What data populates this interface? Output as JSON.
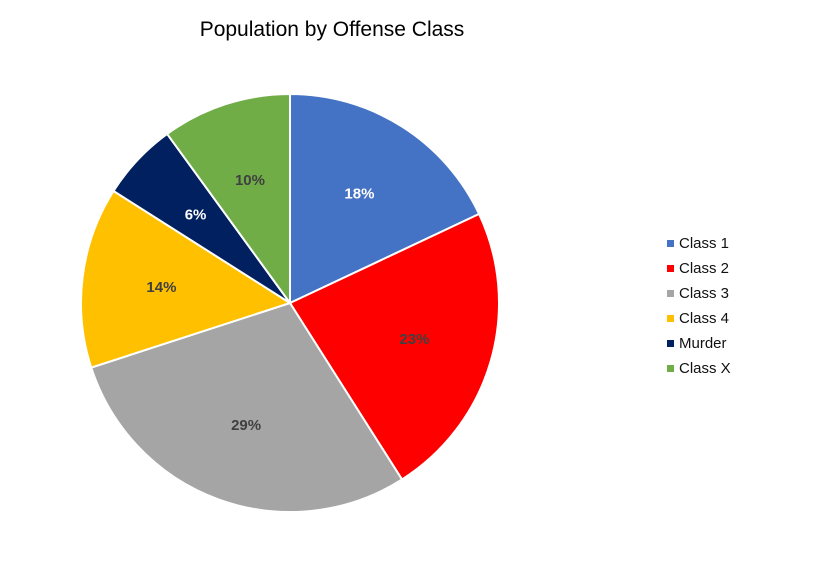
{
  "chart_data": {
    "type": "pie",
    "title": "Population by Offense Class",
    "slices": [
      {
        "name": "Class 1",
        "value": 18,
        "label": "18%",
        "color": "#4472C4",
        "label_color": "#ffffff"
      },
      {
        "name": "Class 2",
        "value": 23,
        "label": "23%",
        "color": "#FF0000",
        "label_color": "#404040"
      },
      {
        "name": "Class 3",
        "value": 29,
        "label": "29%",
        "color": "#A5A5A5",
        "label_color": "#404040"
      },
      {
        "name": "Class 4",
        "value": 14,
        "label": "14%",
        "color": "#FFC000",
        "label_color": "#404040"
      },
      {
        "name": "Murder",
        "value": 6,
        "label": "6%",
        "color": "#002060",
        "label_color": "#ffffff"
      },
      {
        "name": "Class X",
        "value": 10,
        "label": "10%",
        "color": "#70AD47",
        "label_color": "#404040"
      }
    ],
    "legend_position": "right"
  }
}
